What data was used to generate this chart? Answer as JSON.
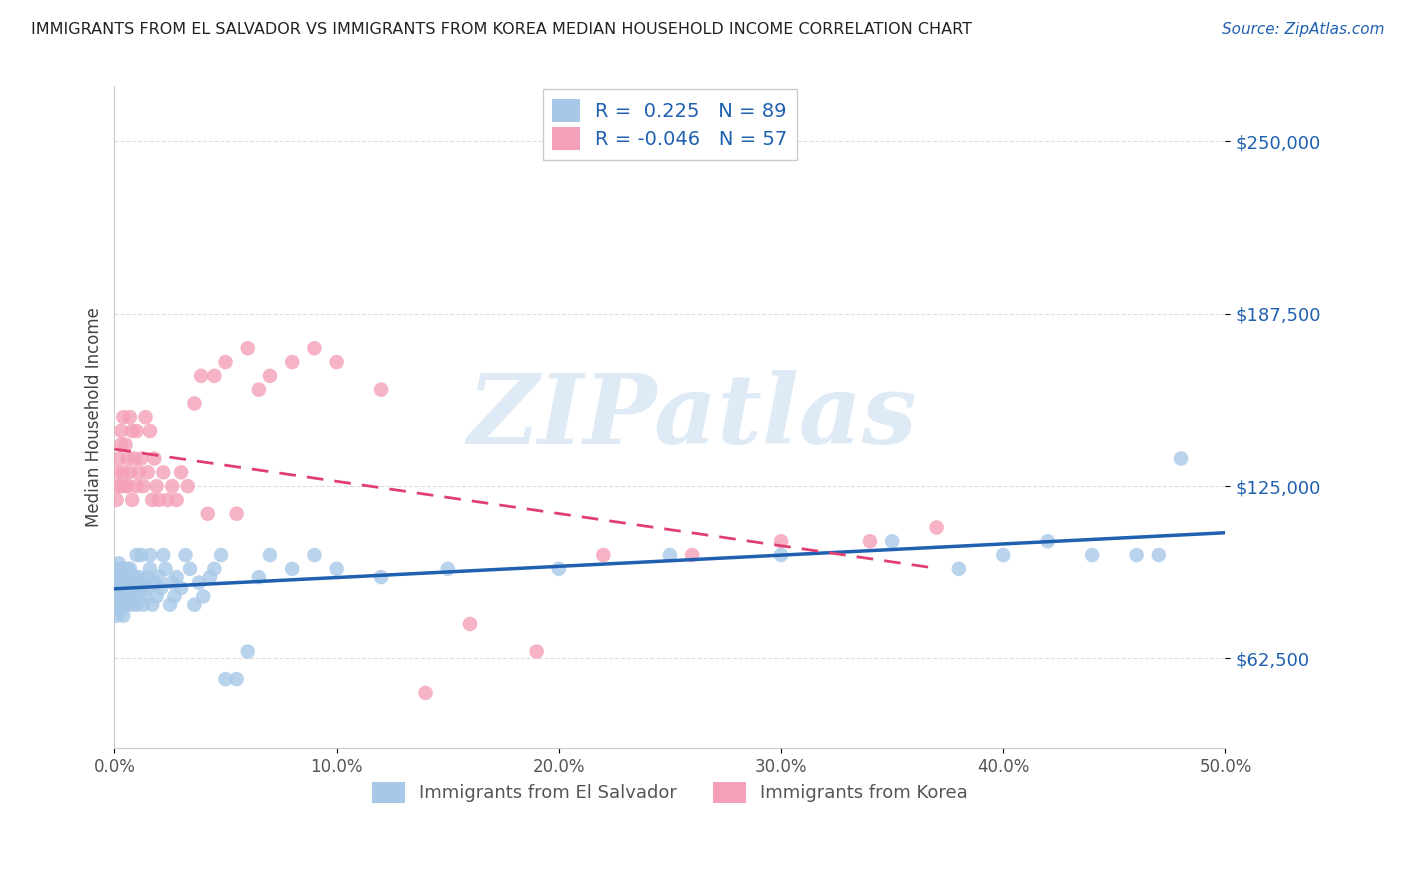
{
  "title": "IMMIGRANTS FROM EL SALVADOR VS IMMIGRANTS FROM KOREA MEDIAN HOUSEHOLD INCOME CORRELATION CHART",
  "source": "Source: ZipAtlas.com",
  "ylabel": "Median Household Income",
  "yticks": [
    62500,
    125000,
    187500,
    250000
  ],
  "ytick_labels": [
    "$62,500",
    "$125,000",
    "$187,500",
    "$250,000"
  ],
  "xlim": [
    0.0,
    0.5
  ],
  "ylim": [
    30000,
    270000
  ],
  "watermark": "ZIPatlas",
  "color_blue": "#A8C8E8",
  "color_pink": "#F4A0B8",
  "line_blue": "#2060B0",
  "line_pink": "#E04070",
  "background": "#FFFFFF",
  "grid_color": "#DDDDDD",
  "R_salvador": 0.225,
  "N_salvador": 89,
  "R_korea": -0.046,
  "N_korea": 57,
  "salvador_x": [
    0.001,
    0.001,
    0.001,
    0.001,
    0.002,
    0.002,
    0.002,
    0.002,
    0.002,
    0.003,
    0.003,
    0.003,
    0.003,
    0.003,
    0.004,
    0.004,
    0.004,
    0.004,
    0.005,
    0.005,
    0.005,
    0.005,
    0.006,
    0.006,
    0.006,
    0.007,
    0.007,
    0.007,
    0.007,
    0.008,
    0.008,
    0.008,
    0.009,
    0.009,
    0.01,
    0.01,
    0.01,
    0.011,
    0.011,
    0.012,
    0.012,
    0.013,
    0.013,
    0.014,
    0.015,
    0.015,
    0.016,
    0.016,
    0.017,
    0.018,
    0.019,
    0.02,
    0.021,
    0.022,
    0.023,
    0.025,
    0.026,
    0.027,
    0.028,
    0.03,
    0.032,
    0.034,
    0.036,
    0.038,
    0.04,
    0.043,
    0.045,
    0.048,
    0.05,
    0.055,
    0.06,
    0.065,
    0.07,
    0.08,
    0.09,
    0.1,
    0.12,
    0.15,
    0.2,
    0.25,
    0.3,
    0.35,
    0.38,
    0.4,
    0.42,
    0.44,
    0.46,
    0.47,
    0.48
  ],
  "salvador_y": [
    85000,
    90000,
    95000,
    78000,
    88000,
    92000,
    82000,
    97000,
    85000,
    90000,
    95000,
    80000,
    85000,
    92000,
    88000,
    95000,
    82000,
    78000,
    90000,
    85000,
    92000,
    88000,
    95000,
    82000,
    90000,
    85000,
    92000,
    88000,
    95000,
    82000,
    90000,
    85000,
    92000,
    88000,
    100000,
    82000,
    90000,
    85000,
    92000,
    88000,
    100000,
    82000,
    90000,
    85000,
    92000,
    88000,
    100000,
    95000,
    82000,
    90000,
    85000,
    92000,
    88000,
    100000,
    95000,
    82000,
    90000,
    85000,
    92000,
    88000,
    100000,
    95000,
    82000,
    90000,
    85000,
    92000,
    95000,
    100000,
    55000,
    55000,
    65000,
    92000,
    100000,
    95000,
    100000,
    95000,
    92000,
    95000,
    95000,
    100000,
    100000,
    105000,
    95000,
    100000,
    105000,
    100000,
    100000,
    100000,
    135000
  ],
  "korea_x": [
    0.001,
    0.001,
    0.002,
    0.002,
    0.003,
    0.003,
    0.003,
    0.004,
    0.004,
    0.005,
    0.005,
    0.006,
    0.006,
    0.007,
    0.007,
    0.008,
    0.008,
    0.009,
    0.01,
    0.01,
    0.011,
    0.012,
    0.013,
    0.014,
    0.015,
    0.016,
    0.017,
    0.018,
    0.019,
    0.02,
    0.022,
    0.024,
    0.026,
    0.028,
    0.03,
    0.033,
    0.036,
    0.039,
    0.042,
    0.045,
    0.05,
    0.055,
    0.06,
    0.065,
    0.07,
    0.08,
    0.09,
    0.1,
    0.12,
    0.14,
    0.16,
    0.19,
    0.22,
    0.26,
    0.3,
    0.34,
    0.37
  ],
  "korea_y": [
    130000,
    120000,
    125000,
    135000,
    140000,
    125000,
    145000,
    130000,
    150000,
    125000,
    140000,
    135000,
    125000,
    150000,
    130000,
    145000,
    120000,
    135000,
    125000,
    145000,
    130000,
    135000,
    125000,
    150000,
    130000,
    145000,
    120000,
    135000,
    125000,
    120000,
    130000,
    120000,
    125000,
    120000,
    130000,
    125000,
    155000,
    165000,
    115000,
    165000,
    170000,
    115000,
    175000,
    160000,
    165000,
    170000,
    175000,
    170000,
    160000,
    50000,
    75000,
    65000,
    100000,
    100000,
    105000,
    105000,
    110000
  ]
}
